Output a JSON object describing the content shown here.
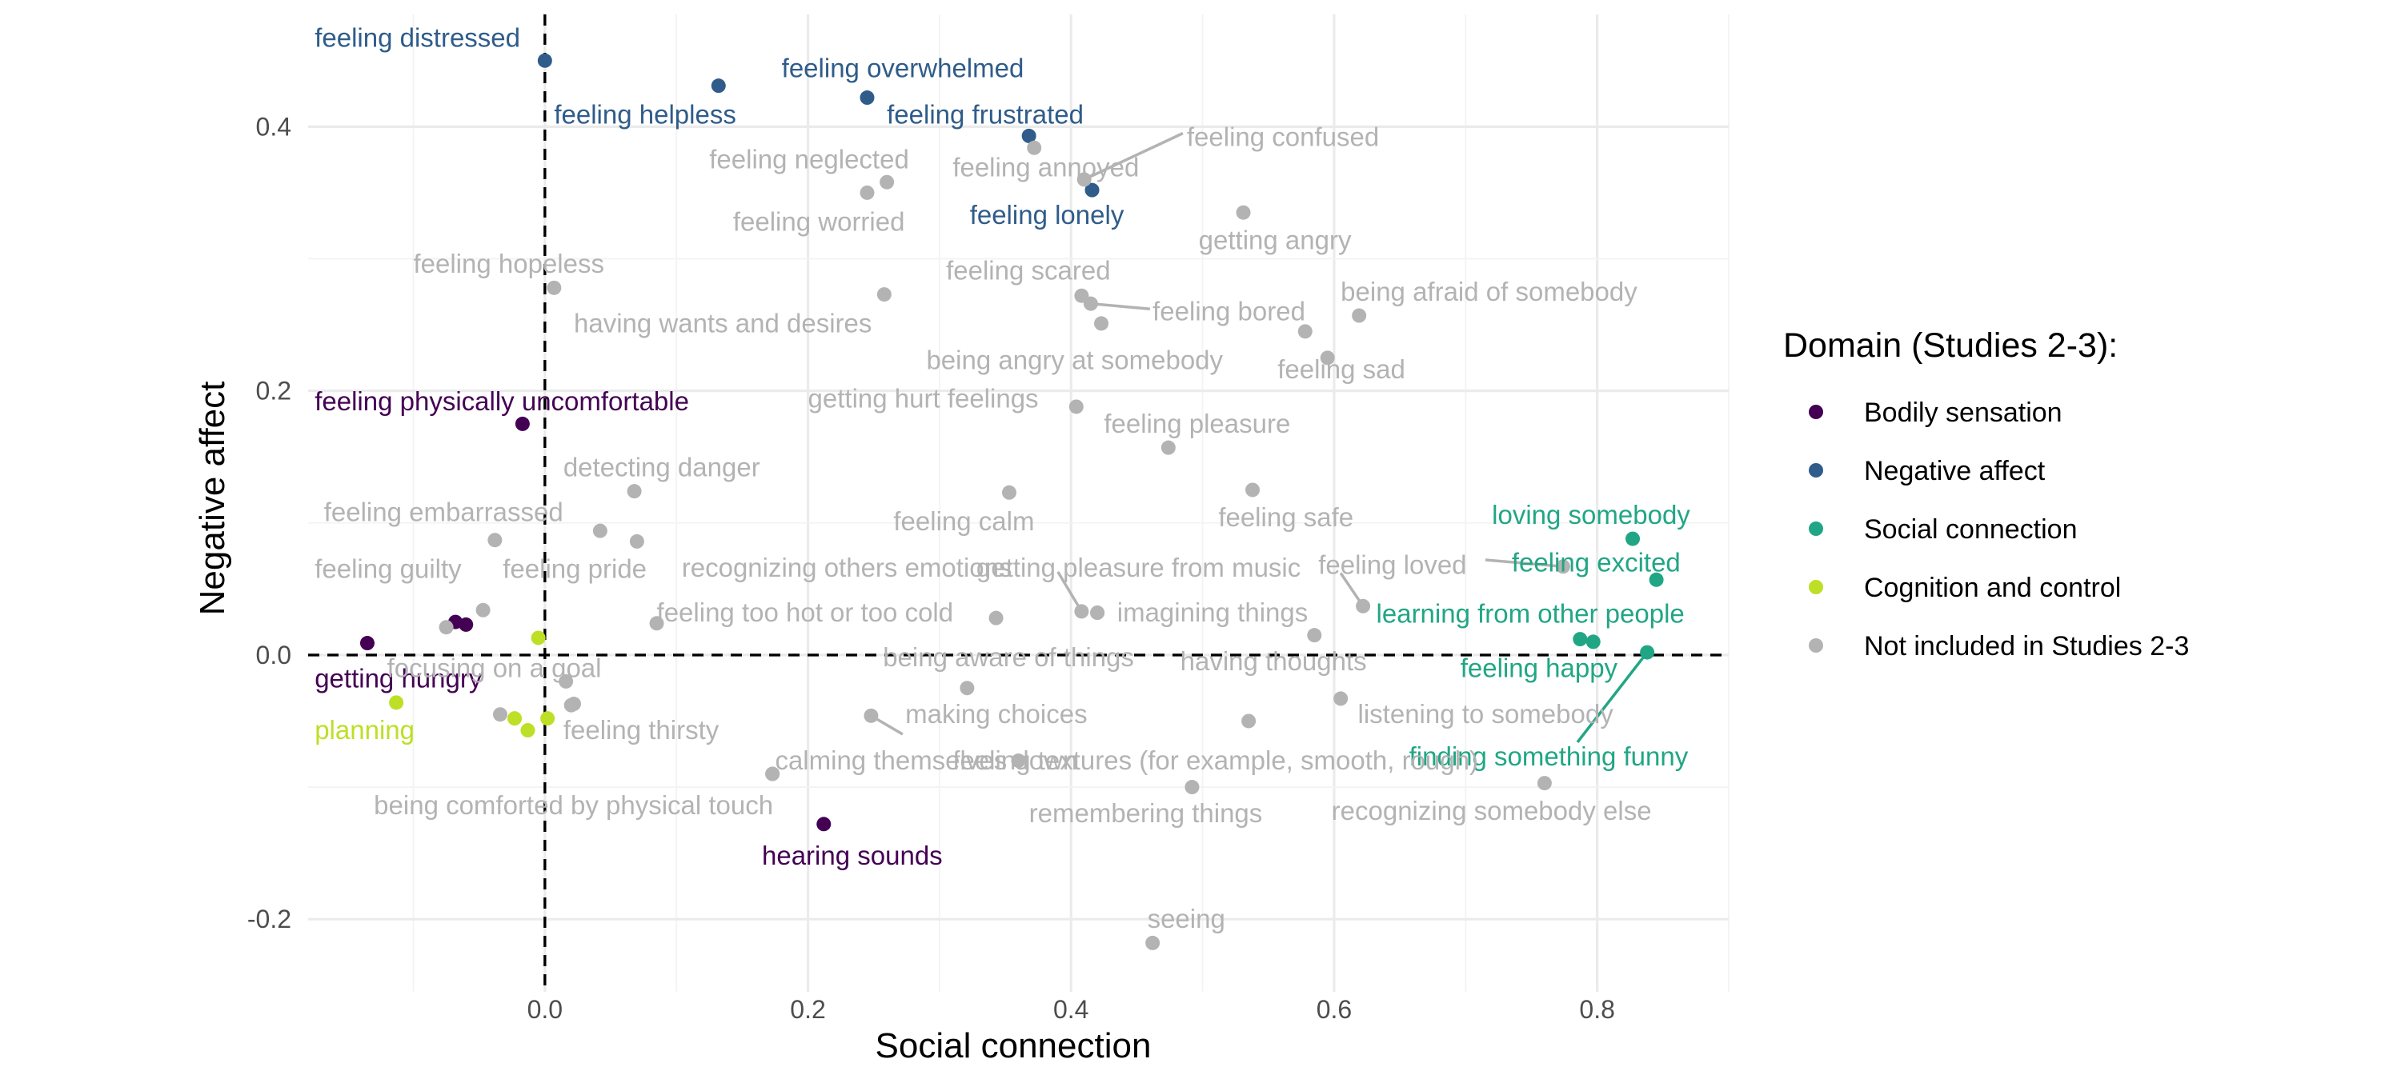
{
  "chart_data": {
    "type": "scatter",
    "xlabel": "Social connection",
    "ylabel": "Negative affect",
    "xlim": [
      -0.18,
      0.9
    ],
    "ylim": [
      -0.255,
      0.485
    ],
    "x_ticks": [
      "0.0",
      "0.2",
      "0.4",
      "0.6",
      "0.8"
    ],
    "x_tick_values": [
      0.0,
      0.2,
      0.4,
      0.6,
      0.8
    ],
    "y_ticks": [
      "-0.2",
      "0.0",
      "0.2",
      "0.4"
    ],
    "y_tick_values": [
      -0.2,
      0.0,
      0.2,
      0.4
    ],
    "grid": true,
    "reference_lines": {
      "x": 0,
      "y": 0,
      "style": "dashed"
    },
    "legend": {
      "title": "Domain (Studies 2-3):",
      "position": "right",
      "entries": [
        {
          "label": "Bodily sensation",
          "color": "#440154"
        },
        {
          "label": "Negative affect",
          "color": "#2f5c8a"
        },
        {
          "label": "Social connection",
          "color": "#21a685"
        },
        {
          "label": "Cognition and control",
          "color": "#bddf26"
        },
        {
          "label": "Not included in Studies 2-3",
          "color": "#b3b3b3"
        }
      ]
    },
    "colors": {
      "Bodily sensation": "#440154",
      "Negative affect": "#2f5c8a",
      "Social connection": "#21a685",
      "Cognition and control": "#bddf26",
      "Not included in Studies 2-3": "#b3b3b3"
    },
    "points": [
      {
        "label": "feeling distressed",
        "x": 0.0,
        "y": 0.45,
        "domain": "Negative affect",
        "lx": -0.175,
        "ly": 0.467,
        "anchor": "start"
      },
      {
        "label": "feeling helpless",
        "x": 0.132,
        "y": 0.431,
        "domain": "Negative affect",
        "lx": 0.007,
        "ly": 0.409,
        "anchor": "start"
      },
      {
        "label": "feeling overwhelmed",
        "x": 0.245,
        "y": 0.422,
        "domain": "Negative affect",
        "lx": 0.18,
        "ly": 0.444,
        "anchor": "start"
      },
      {
        "label": "feeling frustrated",
        "x": 0.368,
        "y": 0.393,
        "domain": "Negative affect",
        "lx": 0.26,
        "ly": 0.409,
        "anchor": "start"
      },
      {
        "label": "feeling lonely",
        "x": 0.416,
        "y": 0.352,
        "domain": "Negative affect",
        "lx": 0.323,
        "ly": 0.333,
        "anchor": "start"
      },
      {
        "label": "feeling physically uncomfortable",
        "x": -0.017,
        "y": 0.175,
        "domain": "Bodily sensation",
        "lx": -0.175,
        "ly": 0.192,
        "anchor": "start"
      },
      {
        "label": "getting hungry",
        "x": -0.135,
        "y": 0.009,
        "domain": "Bodily sensation",
        "lx": -0.175,
        "ly": -0.018,
        "anchor": "start"
      },
      {
        "label": "",
        "x": -0.068,
        "y": 0.025,
        "domain": "Bodily sensation"
      },
      {
        "label": "",
        "x": -0.06,
        "y": 0.023,
        "domain": "Bodily sensation"
      },
      {
        "label": "hearing sounds",
        "x": 0.212,
        "y": -0.128,
        "domain": "Bodily sensation",
        "lx": 0.165,
        "ly": -0.152,
        "anchor": "start"
      },
      {
        "label": "loving somebody",
        "x": 0.827,
        "y": 0.088,
        "domain": "Social connection",
        "lx": 0.72,
        "ly": 0.106,
        "anchor": "start"
      },
      {
        "label": "feeling excited",
        "x": 0.845,
        "y": 0.057,
        "domain": "Social connection",
        "lx": 0.735,
        "ly": 0.07,
        "anchor": "start"
      },
      {
        "label": "learning from other people",
        "x": 0.787,
        "y": 0.012,
        "domain": "Social connection",
        "lx": 0.632,
        "ly": 0.031,
        "anchor": "start"
      },
      {
        "label": "feeling happy",
        "x": 0.797,
        "y": 0.01,
        "domain": "Social connection",
        "lx": 0.696,
        "ly": -0.01,
        "anchor": "start"
      },
      {
        "label": "finding something funny",
        "x": 0.838,
        "y": 0.002,
        "domain": "Social connection",
        "lx": 0.657,
        "ly": -0.077,
        "anchor": "start",
        "leader": true,
        "lsx": 0.785,
        "lsy": -0.066
      },
      {
        "label": "planning",
        "x": -0.113,
        "y": -0.036,
        "domain": "Cognition and control",
        "lx": -0.175,
        "ly": -0.057,
        "anchor": "start"
      },
      {
        "label": "",
        "x": -0.005,
        "y": 0.013,
        "domain": "Cognition and control"
      },
      {
        "label": "",
        "x": -0.023,
        "y": -0.048,
        "domain": "Cognition and control"
      },
      {
        "label": "",
        "x": -0.013,
        "y": -0.057,
        "domain": "Cognition and control"
      },
      {
        "label": "",
        "x": 0.002,
        "y": -0.048,
        "domain": "Cognition and control"
      },
      {
        "label": "feeling neglected",
        "x": 0.26,
        "y": 0.358,
        "domain": "Not included in Studies 2-3",
        "lx": 0.125,
        "ly": 0.375,
        "anchor": "start"
      },
      {
        "label": "feeling worried",
        "x": 0.245,
        "y": 0.35,
        "domain": "Not included in Studies 2-3",
        "lx": 0.143,
        "ly": 0.328,
        "anchor": "start"
      },
      {
        "label": "feeling annoyed",
        "x": 0.372,
        "y": 0.384,
        "domain": "Not included in Studies 2-3",
        "lx": 0.31,
        "ly": 0.369,
        "anchor": "start"
      },
      {
        "label": "feeling confused",
        "x": 0.41,
        "y": 0.36,
        "domain": "Not included in Studies 2-3",
        "lx": 0.488,
        "ly": 0.392,
        "anchor": "start",
        "leader": true,
        "lsx": 0.485,
        "lsy": 0.395
      },
      {
        "label": "getting angry",
        "x": 0.531,
        "y": 0.335,
        "domain": "Not included in Studies 2-3",
        "lx": 0.497,
        "ly": 0.314,
        "anchor": "start"
      },
      {
        "label": "feeling hopeless",
        "x": 0.007,
        "y": 0.278,
        "domain": "Not included in Studies 2-3",
        "lx": -0.1,
        "ly": 0.296,
        "anchor": "start"
      },
      {
        "label": "having wants and desires",
        "x": 0.258,
        "y": 0.273,
        "domain": "Not included in Studies 2-3",
        "lx": 0.022,
        "ly": 0.251,
        "anchor": "start"
      },
      {
        "label": "feeling scared",
        "x": 0.408,
        "y": 0.272,
        "domain": "Not included in Studies 2-3",
        "lx": 0.305,
        "ly": 0.291,
        "anchor": "start"
      },
      {
        "label": "feeling bored",
        "x": 0.415,
        "y": 0.266,
        "domain": "Not included in Studies 2-3",
        "lx": 0.462,
        "ly": 0.26,
        "anchor": "start",
        "leader": true,
        "lsx": 0.46,
        "lsy": 0.262
      },
      {
        "label": "",
        "x": 0.423,
        "y": 0.251,
        "domain": "Not included in Studies 2-3"
      },
      {
        "label": "being angry at somebody",
        "x": 0.578,
        "y": 0.245,
        "domain": "Not included in Studies 2-3",
        "lx": 0.29,
        "ly": 0.223,
        "anchor": "start"
      },
      {
        "label": "being afraid of somebody",
        "x": 0.619,
        "y": 0.257,
        "domain": "Not included in Studies 2-3",
        "lx": 0.605,
        "ly": 0.275,
        "anchor": "start"
      },
      {
        "label": "feeling sad",
        "x": 0.595,
        "y": 0.225,
        "domain": "Not included in Studies 2-3",
        "lx": 0.557,
        "ly": 0.216,
        "anchor": "start"
      },
      {
        "label": "getting hurt feelings",
        "x": 0.404,
        "y": 0.188,
        "domain": "Not included in Studies 2-3",
        "lx": 0.2,
        "ly": 0.194,
        "anchor": "start"
      },
      {
        "label": "feeling pleasure",
        "x": 0.474,
        "y": 0.157,
        "domain": "Not included in Studies 2-3",
        "lx": 0.425,
        "ly": 0.175,
        "anchor": "start"
      },
      {
        "label": "detecting danger",
        "x": 0.068,
        "y": 0.124,
        "domain": "Not included in Studies 2-3",
        "lx": 0.014,
        "ly": 0.142,
        "anchor": "start"
      },
      {
        "label": "feeling calm",
        "x": 0.353,
        "y": 0.123,
        "domain": "Not included in Studies 2-3",
        "lx": 0.265,
        "ly": 0.101,
        "anchor": "start"
      },
      {
        "label": "feeling safe",
        "x": 0.538,
        "y": 0.125,
        "domain": "Not included in Studies 2-3",
        "lx": 0.512,
        "ly": 0.104,
        "anchor": "start"
      },
      {
        "label": "feeling embarrassed",
        "x": -0.038,
        "y": 0.087,
        "domain": "Not included in Studies 2-3",
        "lx": -0.168,
        "ly": 0.108,
        "anchor": "start"
      },
      {
        "label": "",
        "x": 0.042,
        "y": 0.094,
        "domain": "Not included in Studies 2-3"
      },
      {
        "label": "feeling pride",
        "x": 0.07,
        "y": 0.086,
        "domain": "Not included in Studies 2-3",
        "lx": -0.032,
        "ly": 0.065,
        "anchor": "start"
      },
      {
        "label": "feeling guilty",
        "x": -0.047,
        "y": 0.034,
        "domain": "Not included in Studies 2-3",
        "lx": -0.175,
        "ly": 0.065,
        "anchor": "start"
      },
      {
        "label": "",
        "x": -0.075,
        "y": 0.021,
        "domain": "Not included in Studies 2-3"
      },
      {
        "label": "recognizing others emotions",
        "x": 0.408,
        "y": 0.033,
        "domain": "Not included in Studies 2-3",
        "lx": 0.104,
        "ly": 0.066,
        "anchor": "start",
        "leader": true,
        "lsx": 0.39,
        "lsy": 0.063
      },
      {
        "label": "getting pleasure from music",
        "x": 0.42,
        "y": 0.032,
        "domain": "Not included in Studies 2-3",
        "lx": 0.328,
        "ly": 0.066,
        "anchor": "start"
      },
      {
        "label": "imagining things",
        "x": 0.42,
        "y": 0.032,
        "domain": "Not included in Studies 2-3",
        "lx": 0.435,
        "ly": 0.032,
        "anchor": "start"
      },
      {
        "label": "feeling too hot or too cold",
        "x": 0.343,
        "y": 0.028,
        "domain": "Not included in Studies 2-3",
        "lx": 0.085,
        "ly": 0.032,
        "anchor": "start"
      },
      {
        "label": "",
        "x": 0.085,
        "y": 0.024,
        "domain": "Not included in Studies 2-3"
      },
      {
        "label": "feeling loved",
        "x": 0.774,
        "y": 0.067,
        "domain": "Not included in Studies 2-3",
        "lx": 0.588,
        "ly": 0.068,
        "anchor": "start",
        "leader": true,
        "lsx": 0.715,
        "lsy": 0.072
      },
      {
        "label": "having thoughts",
        "x": 0.585,
        "y": 0.015,
        "domain": "Not included in Studies 2-3",
        "lx": 0.483,
        "ly": -0.005,
        "anchor": "start"
      },
      {
        "label": "",
        "x": 0.622,
        "y": 0.037,
        "domain": "Not included in Studies 2-3",
        "leader": true,
        "lsx": 0.605,
        "lsy": 0.062
      },
      {
        "label": "being aware of things",
        "x": 0.321,
        "y": -0.025,
        "domain": "Not included in Studies 2-3",
        "lx": 0.257,
        "ly": -0.002,
        "anchor": "start"
      },
      {
        "label": "focusing on a goal",
        "x": 0.016,
        "y": -0.02,
        "domain": "Not included in Studies 2-3",
        "lx": -0.12,
        "ly": -0.01,
        "anchor": "start"
      },
      {
        "label": "",
        "x": 0.022,
        "y": -0.037,
        "domain": "Not included in Studies 2-3"
      },
      {
        "label": "",
        "x": -0.034,
        "y": -0.045,
        "domain": "Not included in Studies 2-3"
      },
      {
        "label": "feeling thirsty",
        "x": 0.02,
        "y": -0.038,
        "domain": "Not included in Studies 2-3",
        "lx": 0.014,
        "ly": -0.057,
        "anchor": "start"
      },
      {
        "label": "making choices",
        "x": 0.248,
        "y": -0.046,
        "domain": "Not included in Studies 2-3",
        "lx": 0.274,
        "ly": -0.045,
        "anchor": "start",
        "leader": true,
        "lsx": 0.272,
        "lsy": -0.06
      },
      {
        "label": "listening to somebody",
        "x": 0.605,
        "y": -0.033,
        "domain": "Not included in Studies 2-3",
        "lx": 0.618,
        "ly": -0.045,
        "anchor": "start"
      },
      {
        "label": "",
        "x": 0.535,
        "y": -0.05,
        "domain": "Not included in Studies 2-3"
      },
      {
        "label": "calming themselves down",
        "x": 0.173,
        "y": -0.09,
        "domain": "Not included in Studies 2-3",
        "lx": 0.175,
        "ly": -0.08,
        "anchor": "start"
      },
      {
        "label": "feeling textures (for example, smooth, rough)",
        "x": 0.36,
        "y": -0.08,
        "domain": "Not included in Studies 2-3",
        "lx": 0.31,
        "ly": -0.08,
        "anchor": "start"
      },
      {
        "label": "being comforted by physical touch",
        "x": 0.173,
        "y": -0.09,
        "domain": "Not included in Studies 2-3",
        "lx": -0.13,
        "ly": -0.114,
        "anchor": "start"
      },
      {
        "label": "remembering things",
        "x": 0.492,
        "y": -0.1,
        "domain": "Not included in Studies 2-3",
        "lx": 0.368,
        "ly": -0.12,
        "anchor": "start"
      },
      {
        "label": "recognizing somebody else",
        "x": 0.76,
        "y": -0.097,
        "domain": "Not included in Studies 2-3",
        "lx": 0.598,
        "ly": -0.118,
        "anchor": "start"
      },
      {
        "label": "seeing",
        "x": 0.462,
        "y": -0.218,
        "domain": "Not included in Studies 2-3",
        "lx": 0.458,
        "ly": -0.2,
        "anchor": "start"
      }
    ]
  }
}
